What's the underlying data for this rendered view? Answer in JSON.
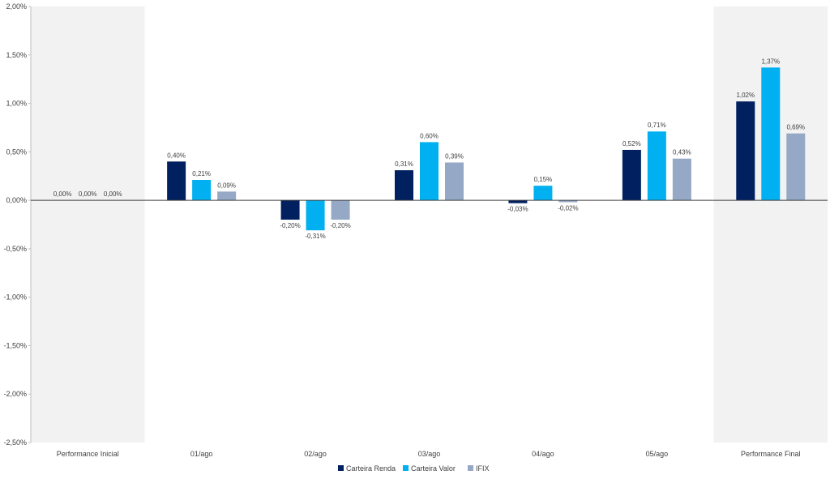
{
  "chart_data": {
    "type": "bar",
    "categories": [
      "Performance Inicial",
      "01/ago",
      "02/ago",
      "03/ago",
      "04/ago",
      "05/ago",
      "Performance Final"
    ],
    "series": [
      {
        "name": "Carteira Renda",
        "color": "#002060",
        "values": [
          0.0,
          0.4,
          -0.2,
          0.31,
          -0.03,
          0.52,
          1.02
        ],
        "labels": [
          "0,00%",
          "0,40%",
          "-0,20%",
          "0,31%",
          "-0,03%",
          "0,52%",
          "1,02%"
        ]
      },
      {
        "name": "Carteira Valor",
        "color": "#00B0F0",
        "values": [
          0.0,
          0.21,
          -0.31,
          0.6,
          0.15,
          0.71,
          1.37
        ],
        "labels": [
          "0,00%",
          "0,21%",
          "-0,31%",
          "0,60%",
          "0,15%",
          "0,71%",
          "1,37%"
        ]
      },
      {
        "name": "IFIX",
        "color": "#95A9C6",
        "values": [
          0.0,
          0.09,
          -0.2,
          0.39,
          -0.02,
          0.43,
          0.69
        ],
        "labels": [
          "0,00%",
          "0,09%",
          "-0,20%",
          "0,39%",
          "-0,02%",
          "0,43%",
          "0,69%"
        ]
      }
    ],
    "yticks": [
      2.0,
      1.5,
      1.0,
      0.5,
      0.0,
      -0.5,
      -1.0,
      -1.5,
      -2.0,
      -2.5
    ],
    "ytick_labels": [
      "2,00%",
      "1,50%",
      "1,00%",
      "0,50%",
      "0,00%",
      "-0,50%",
      "-1,00%",
      "-1,50%",
      "-2,00%",
      "-2,50%"
    ],
    "ylim": [
      -2.5,
      2.0
    ],
    "highlighted_categories": [
      "Performance Inicial",
      "Performance Final"
    ],
    "highlight_color": "#F2F2F2",
    "grid": false,
    "legend_position": "bottom-center",
    "title": "",
    "xlabel": "",
    "ylabel": ""
  }
}
